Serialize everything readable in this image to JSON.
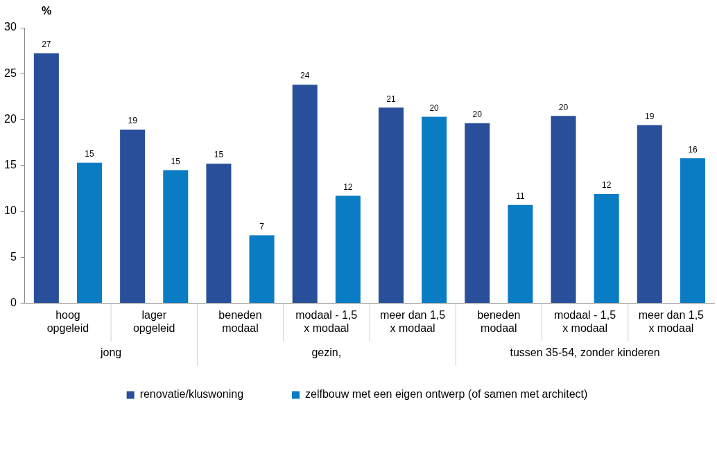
{
  "chart_data": {
    "type": "bar",
    "ylabel": "%",
    "categories": [
      "hoog\nopgeleid",
      "lager\nopgeleid",
      "beneden\nmodaal",
      "modaal - 1,5\nx modaal",
      "meer dan 1,5\nx modaal",
      "beneden\nmodaal",
      "modaal - 1,5\nx modaal",
      "meer dan 1,5\nx modaal"
    ],
    "series": [
      {
        "name": "renovatie/kluswoning",
        "color": "#2a4f9a",
        "values": [
          27.2,
          18.9,
          15.2,
          23.8,
          21.3,
          19.6,
          20.4,
          19.4
        ],
        "value_labels": [
          "27",
          "19",
          "15",
          "24",
          "21",
          "20",
          "20",
          "19"
        ]
      },
      {
        "name": "zelfbouw met een eigen ontwerp (of samen met architect)",
        "color": "#0a7cc4",
        "values": [
          15.3,
          14.5,
          7.4,
          11.7,
          20.3,
          10.7,
          11.9,
          15.8
        ],
        "value_labels": [
          "15",
          "15",
          "7",
          "12",
          "20",
          "11",
          "12",
          "16"
        ]
      }
    ],
    "annotations": [
      "jong",
      "gezin,",
      "tussen 35-54, zonder kinderen"
    ],
    "ylim": [
      0,
      30
    ],
    "yticks": [
      0,
      5,
      10,
      15,
      20,
      25,
      30
    ],
    "grid": false,
    "legend": "bottom"
  }
}
